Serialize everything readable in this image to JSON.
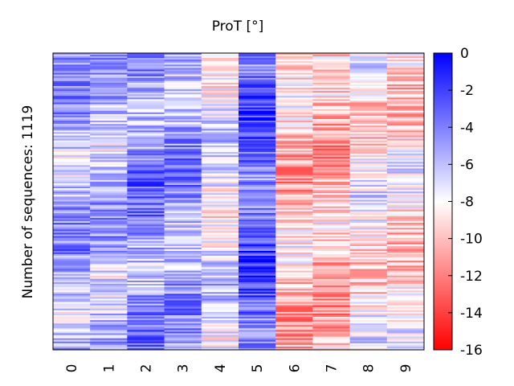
{
  "chart_data": {
    "type": "heatmap",
    "title": "ProT [°]",
    "xlabel": "",
    "ylabel": "Number of sequences: 1119",
    "columns": [
      "0",
      "1",
      "2",
      "3",
      "4",
      "5",
      "6",
      "7",
      "8",
      "9"
    ],
    "row_count": 1119,
    "colorbar": {
      "min": -16,
      "max": 0,
      "ticks": [
        "0",
        "-2",
        "-4",
        "-6",
        "-8",
        "-10",
        "-12",
        "-14",
        "-16"
      ],
      "colors": {
        "high": "#0000ff",
        "mid": "#ffffff",
        "low": "#ff0000"
      }
    },
    "column_means": [
      -5.5,
      -5.8,
      -4.5,
      -5.2,
      -7.2,
      -3.2,
      -9.8,
      -10.3,
      -8.4,
      -8.9
    ],
    "grid": false
  }
}
